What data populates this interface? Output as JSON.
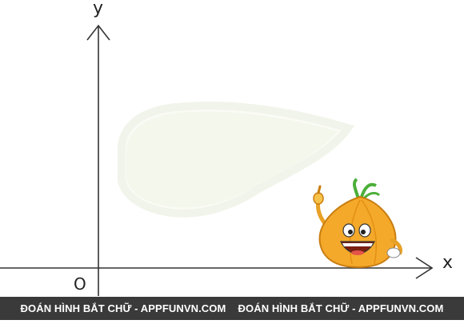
{
  "axes": {
    "y_label": "y",
    "x_label": "x",
    "origin_label": "O"
  },
  "shape": {
    "fill": "#f5f8ee",
    "glow": "#fbfbf6"
  },
  "mascot": {
    "icon": "onion-mascot-icon",
    "body_color": "#f4a92a",
    "leaf_color": "#4caf3a"
  },
  "footer": {
    "left_text": "ĐOÁN HÌNH BẮT CHỮ - APPFUNVN.COM",
    "right_text": "ĐOÁN HÌNH BẮT CHỮ - APPFUNVN.COM",
    "background": "#3a3a3a"
  }
}
